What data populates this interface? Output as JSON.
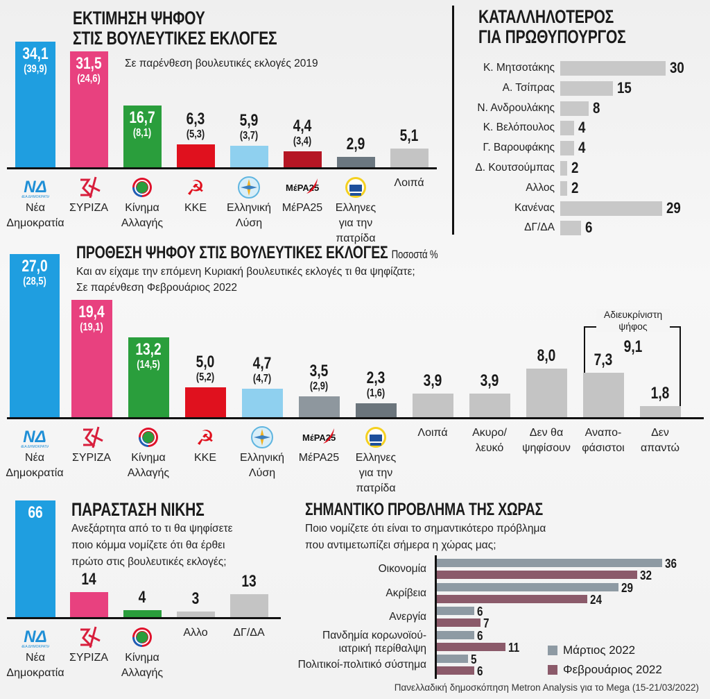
{
  "chart_data": [
    {
      "type": "bar",
      "id": "estimate",
      "title": "ΕΚΤΙΜΗΣΗ ΨΗΦΟΥ",
      "title2": "ΣΤΙΣ ΒΟΥΛΕΥΤΙΚΕΣ ΕΚΛΟΓΕΣ",
      "subtitle": "Σε παρένθεση βουλευτικές εκλογές 2019",
      "decimals": 1,
      "categories": [
        "Νέα\nΔημοκρατία",
        "ΣΥΡΙΖΑ",
        "Κίνημα\nΑλλαγής",
        "ΚΚΕ",
        "Ελληνική\nΛύση",
        "ΜέΡΑ25",
        "Ελληνες\nγια την πατρίδα",
        "Λοιπά"
      ],
      "values": [
        34.1,
        31.5,
        16.7,
        6.3,
        5.9,
        4.4,
        2.9,
        5.1
      ],
      "previous": [
        39.9,
        24.6,
        8.1,
        5.3,
        3.7,
        3.4,
        null,
        null
      ],
      "colors": [
        "#1f9ee0",
        "#e8417f",
        "#2a9e3c",
        "#e0111e",
        "#8fd0ef",
        "#b51624",
        "#6b7780",
        "#c4c4c4"
      ],
      "logos": [
        "nd",
        "syriza",
        "kinal",
        "kke",
        "el",
        "mera",
        "ellines",
        null
      ]
    },
    {
      "type": "bar",
      "id": "intention",
      "title": "ΠΡΟΘΕΣΗ ΨΗΦΟΥ ΣΤΙΣ ΒΟΥΛΕΥΤΙΚΕΣ ΕΚΛΟΓΕΣ",
      "unit": "Ποσοστά %",
      "subtitle": "Και αν είχαμε την επόμενη Κυριακή βουλευτικές εκλογές τι θα ψηφίζατε;\nΣε παρένθεση Φεβρουάριος 2022",
      "decimals": 1,
      "categories": [
        "Νέα\nΔημοκρατία",
        "ΣΥΡΙΖΑ",
        "Κίνημα\nΑλλαγής",
        "ΚΚΕ",
        "Ελληνική\nΛύση",
        "ΜέΡΑ25",
        "Ελληνες\nγια την πατρίδα",
        "Λοιπά",
        "Ακυρο/\nλευκό",
        "Δεν θα\nψηφίσουν",
        "Αναπο-\nφάσιστοι",
        "Δεν\nαπαντώ"
      ],
      "values": [
        27.0,
        19.4,
        13.2,
        5.0,
        4.7,
        3.5,
        2.3,
        3.9,
        3.9,
        8.0,
        7.3,
        1.8
      ],
      "previous": [
        28.5,
        19.1,
        14.5,
        5.2,
        4.7,
        2.9,
        1.6,
        null,
        null,
        null,
        null,
        null
      ],
      "colors": [
        "#1f9ee0",
        "#e8417f",
        "#2a9e3c",
        "#e0111e",
        "#8fd0ef",
        "#8e979e",
        "#6b757c",
        "#c4c4c4",
        "#c4c4c4",
        "#c4c4c4",
        "#c4c4c4",
        "#c4c4c4"
      ],
      "logos": [
        "nd",
        "syriza",
        "kinal",
        "kke",
        "el",
        "mera",
        "ellines",
        null,
        null,
        null,
        null,
        null
      ],
      "annotation": {
        "label": "Αδιευκρίνιστη\nψήφος",
        "value": "9,1"
      }
    },
    {
      "type": "bar",
      "id": "pm",
      "orientation": "horizontal",
      "title": "ΚΑΤΑΛΛΗΛΟΤΕΡΟΣ",
      "title2": "ΓΙΑ ΠΡΩΘΥΠΟΥΡΓΟΣ",
      "categories": [
        "Κ. Μητσοτάκης",
        "Α. Τσίπρας",
        "Ν. Ανδρουλάκης",
        "Κ. Βελόπουλος",
        "Γ. Βαρουφάκης",
        "Δ. Κουτσούμπας",
        "Αλλος",
        "Κανένας",
        "ΔΓ/ΔΑ"
      ],
      "values": [
        30,
        15,
        8,
        4,
        4,
        2,
        2,
        29,
        6
      ]
    },
    {
      "type": "bar",
      "id": "victory",
      "title": "ΠΑΡΑΣΤΑΣΗ ΝΙΚΗΣ",
      "subtitle": "Ανεξάρτητα από το τι  θα ψηφίσετε\nποιο κόμμα νομίζετε ότι θα έρθει\nπρώτο στις βουλευτικές εκλογές;",
      "decimals": 0,
      "categories": [
        "Νέα\nΔημοκρατία",
        "ΣΥΡΙΖΑ",
        "Κίνημα\nΑλλαγής",
        "Αλλο",
        "ΔΓ/ΔΑ"
      ],
      "values": [
        66,
        14,
        4,
        3,
        13
      ],
      "previous": [
        null,
        null,
        null,
        null,
        null
      ],
      "colors": [
        "#1f9ee0",
        "#e8417f",
        "#2a9e3c",
        "#c4c4c4",
        "#c4c4c4"
      ],
      "logos": [
        "nd",
        "syriza",
        "kinal",
        null,
        null
      ]
    },
    {
      "type": "bar",
      "id": "problem",
      "orientation": "horizontal",
      "title": "ΣΗΜΑΝΤΙΚΟ ΠΡΟΒΛΗΜΑ ΤΗΣ ΧΩΡΑΣ",
      "subtitle": "Ποιο νομίζετε ότι είναι το σημαντικότερο πρόβλημα\nπου αντιμετωπίζει σήμερα η χώρας μας;",
      "categories": [
        "Οικονομία",
        "Ακρίβεια",
        "Ανεργία",
        "Πανδημία κορωνοϊού-\nιατρική περίθαλψη",
        "Πολιτικοί-πολιτικό σύστημα"
      ],
      "series": [
        {
          "name": "Μάρτιος 2022",
          "color": "#8e9aa3",
          "values": [
            36,
            29,
            6,
            6,
            5
          ]
        },
        {
          "name": "Φεβρουάριος 2022",
          "color": "#8b5a6a",
          "values": [
            32,
            24,
            7,
            11,
            6
          ]
        }
      ],
      "legend": "bottom-right"
    }
  ],
  "source": "Πανελλαδική δημοσκόπηση Metron Analysis για το Mega (15-21/03/2022)"
}
